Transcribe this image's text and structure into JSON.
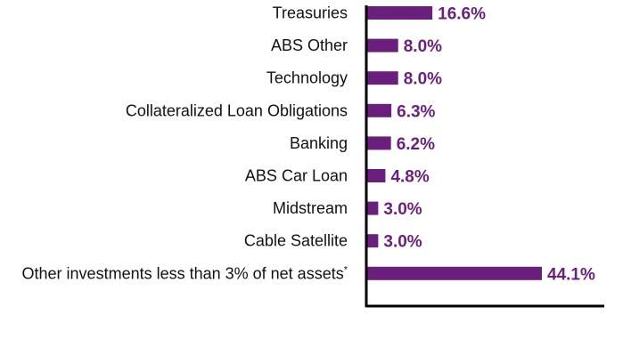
{
  "chart_data": {
    "type": "bar",
    "orientation": "horizontal",
    "categories": [
      "Treasuries",
      "ABS Other",
      "Technology",
      "Collateralized Loan Obligations",
      "Banking",
      "ABS Car Loan",
      "Midstream",
      "Cable Satellite",
      "Other investments less than 3% of net assets"
    ],
    "footnote_markers": [
      "",
      "",
      "",
      "",
      "",
      "",
      "",
      "",
      "*"
    ],
    "values": [
      16.6,
      8.0,
      8.0,
      6.3,
      6.2,
      4.8,
      3.0,
      3.0,
      44.1
    ],
    "value_labels": [
      "16.6%",
      "8.0%",
      "8.0%",
      "6.3%",
      "6.2%",
      "4.8%",
      "3.0%",
      "3.0%",
      "44.1%"
    ],
    "title": "",
    "xlabel": "",
    "ylabel": "",
    "xlim": [
      0,
      44.1
    ],
    "grid": false,
    "bar_color": "#6b1f7c",
    "label_color": "#6b1f7c"
  }
}
